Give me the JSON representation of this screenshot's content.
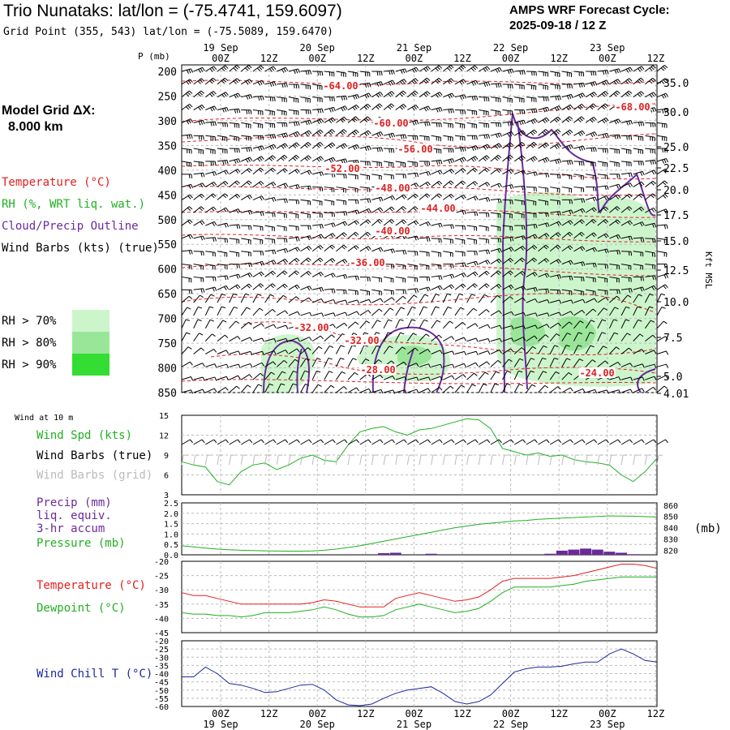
{
  "header": {
    "title": "Trio Nunataks:  lat/lon = (-75.4741, 159.6097)",
    "subtitle": "Grid Point (355, 543) lat/lon = (-75.5089, 159.6470)",
    "cycle_line1": "AMPS WRF Forecast Cycle:",
    "cycle_line2": "2025-09-18 / 12  Z"
  },
  "left_panel": {
    "grid_line1": "Model Grid ΔX:",
    "grid_line2": "8.000 km",
    "legend": [
      {
        "text": "Temperature (°C)",
        "color": "#e02020"
      },
      {
        "text": "RH (%, WRT liq. wat.)",
        "color": "#20b020"
      },
      {
        "text": "Cloud/Precip Outline",
        "color": "#6a2a9a"
      },
      {
        "text": "Wind Barbs (kts) (true)",
        "color": "#000000"
      }
    ],
    "rh_legend": [
      {
        "text": "RH > 70%",
        "color": "#ccf5cc"
      },
      {
        "text": "RH > 80%",
        "color": "#99e699"
      },
      {
        "text": "RH > 90%",
        "color": "#33dd33"
      }
    ],
    "p_axis_title": "P (mb)"
  },
  "time_axis": {
    "top_labels": [
      "00Z",
      "12Z",
      "00Z",
      "12Z",
      "00Z",
      "12Z",
      "00Z",
      "12Z",
      "00Z",
      "12Z"
    ],
    "top_dates": [
      "19 Sep",
      "20 Sep",
      "21 Sep",
      "22 Sep",
      "23 Sep"
    ],
    "bottom_labels": [
      "00Z",
      "12Z",
      "00Z",
      "12Z",
      "00Z",
      "12Z",
      "00Z",
      "12Z",
      "00Z",
      "12Z"
    ],
    "bottom_dates": [
      "19 Sep",
      "20 Sep",
      "21 Sep",
      "22 Sep",
      "23 Sep"
    ]
  },
  "right_axis": {
    "title": "Kft MSL",
    "ticks": [
      "35.0",
      "30.0",
      "25.0",
      "22.5",
      "20.0",
      "17.5",
      "15.0",
      "12.5",
      "10.0",
      "7.5",
      "5.0",
      "4.01"
    ]
  },
  "wind_panel": {
    "header": "Wind at 10 m",
    "labels": [
      {
        "text": "Wind Spd (kts)",
        "color": "#20b020"
      },
      {
        "text": "Wind Barbs (true)",
        "color": "#000000"
      },
      {
        "text": "Wind Barbs (grid)",
        "color": "#bbbbbb"
      }
    ]
  },
  "precip_panel": {
    "labels": [
      {
        "text": "Precip (mm)",
        "color": "#6a2a9a"
      },
      {
        "text": "liq. equiv.",
        "color": "#6a2a9a"
      },
      {
        "text": "3-hr accum",
        "color": "#6a2a9a"
      },
      {
        "text": "Pressure (mb)",
        "color": "#20b020"
      }
    ],
    "right_unit": "(mb)"
  },
  "temp_panel": {
    "labels": [
      {
        "text": "Temperature (°C)",
        "color": "#e02020"
      },
      {
        "text": "Dewpoint (°C)",
        "color": "#20b020"
      }
    ]
  },
  "chill_panel": {
    "labels": [
      {
        "text": "Wind Chill T (°C)",
        "color": "#1a2aa0"
      }
    ]
  },
  "chart_data": [
    {
      "type": "heatmap",
      "x": [
        0,
        3,
        6,
        9,
        12,
        15,
        18,
        21,
        24,
        27,
        30,
        33,
        36,
        39,
        42,
        45,
        48,
        51,
        54,
        57,
        60,
        63,
        66,
        69,
        72,
        75,
        78,
        81,
        84,
        87,
        90,
        93,
        96,
        99,
        102,
        105,
        108,
        111,
        114,
        117,
        120
      ],
      "pressure_levels_mb": [
        200,
        250,
        300,
        350,
        400,
        450,
        500,
        550,
        600,
        650,
        700,
        750,
        800,
        850
      ],
      "ylim": [
        850,
        200
      ],
      "temperature_contour_labels": [
        {
          "label": "-64.00"
        },
        {
          "label": "-60.00"
        },
        {
          "label": "-56.00"
        },
        {
          "label": "-52.00"
        },
        {
          "label": "-48.00"
        },
        {
          "label": "-44.00"
        },
        {
          "label": "-40.00"
        },
        {
          "label": "-36.00"
        },
        {
          "label": "-32.00"
        },
        {
          "label": "-32.00"
        },
        {
          "label": "-28.00"
        },
        {
          "label": "-24.00"
        },
        {
          "label": "-68.00"
        }
      ]
    },
    {
      "type": "line",
      "ylim": [
        3,
        15
      ],
      "yticks": [
        3,
        6,
        9,
        12,
        15
      ],
      "series": [
        {
          "values": [
            8,
            7.5,
            7.2,
            5,
            4.5,
            6.5,
            7.5,
            7.8,
            6.8,
            7.5,
            8.5,
            9,
            8.2,
            8,
            10.5,
            12.5,
            13,
            13.3,
            12.5,
            12,
            12.8,
            13,
            13.5,
            14,
            14.5,
            14.3,
            13,
            10,
            9.5,
            9,
            9.3,
            8.8,
            9,
            8.3,
            8,
            7.8,
            7.5,
            6,
            5,
            6.5,
            8.5
          ]
        }
      ]
    },
    {
      "type": "line",
      "precip_ylim": [
        0,
        2.5
      ],
      "precip_yticks": [
        0.0,
        0.5,
        1.0,
        1.5,
        2.0,
        2.5
      ],
      "pressure_ylim": [
        816,
        862
      ],
      "pressure_yticks": [
        820,
        830,
        840,
        850,
        860
      ],
      "series": [
        {
          "values": [
            824,
            823,
            822,
            821,
            820.5,
            820,
            819.8,
            819.5,
            819.3,
            819.2,
            819.2,
            819.4,
            820,
            821,
            822.5,
            824,
            826,
            828,
            830,
            832,
            834,
            836,
            838,
            840,
            841.5,
            843,
            844,
            845,
            846,
            846.5,
            847.5,
            848,
            848.5,
            849,
            849.5,
            850,
            850.5,
            850.3,
            850.2,
            849.8,
            849.5
          ]
        },
        {
          "values": [
            0,
            0,
            0,
            0,
            0,
            0,
            0,
            0,
            0,
            0,
            0,
            0,
            0,
            0,
            0,
            0,
            0,
            0.08,
            0.1,
            0,
            0,
            0.05,
            0,
            0,
            0,
            0,
            0,
            0,
            0,
            0,
            0,
            0.05,
            0.2,
            0.25,
            0.3,
            0.25,
            0.15,
            0.1,
            0.03,
            0,
            0
          ]
        }
      ]
    },
    {
      "type": "line",
      "ylim": [
        -45,
        -20
      ],
      "yticks": [
        -45,
        -40,
        -35,
        -30,
        -25,
        -20
      ],
      "series": [
        {
          "values": [
            -31,
            -32,
            -32,
            -33,
            -34,
            -35,
            -35,
            -35,
            -35,
            -35,
            -35,
            -34.5,
            -33.5,
            -34,
            -35,
            -36,
            -36,
            -36,
            -33,
            -32,
            -31,
            -32,
            -33,
            -34,
            -33.5,
            -32.5,
            -30,
            -27,
            -26,
            -26,
            -26,
            -26,
            -25.5,
            -25,
            -24,
            -23,
            -22,
            -21,
            -21,
            -21.5,
            -22.5
          ]
        },
        {
          "values": [
            -38,
            -38.5,
            -38.5,
            -39,
            -39,
            -39.5,
            -39,
            -38,
            -38,
            -38,
            -37.5,
            -37,
            -36,
            -37,
            -38.5,
            -39.5,
            -39.5,
            -39,
            -37,
            -36,
            -35,
            -36,
            -37,
            -38,
            -37.5,
            -36.5,
            -34,
            -31,
            -29,
            -29,
            -29,
            -29,
            -28.5,
            -28,
            -27,
            -26.5,
            -26,
            -25.5,
            -25.5,
            -25.5,
            -25.5
          ]
        }
      ]
    },
    {
      "type": "line",
      "ylim": [
        -60,
        -20
      ],
      "yticks": [
        -60,
        -55,
        -50,
        -45,
        -40,
        -35,
        -30,
        -25,
        -20
      ],
      "series": [
        {
          "values": [
            -42,
            -42,
            -36,
            -40,
            -46,
            -47,
            -49,
            -51.5,
            -51,
            -49,
            -47,
            -46.5,
            -50,
            -56,
            -59,
            -59.5,
            -58.5,
            -55,
            -52,
            -50,
            -49,
            -48,
            -52,
            -57,
            -58.5,
            -57,
            -53,
            -46,
            -39,
            -37,
            -36,
            -36,
            -35.5,
            -34,
            -33,
            -33,
            -28,
            -25,
            -28,
            -32,
            -33
          ]
        }
      ]
    }
  ]
}
